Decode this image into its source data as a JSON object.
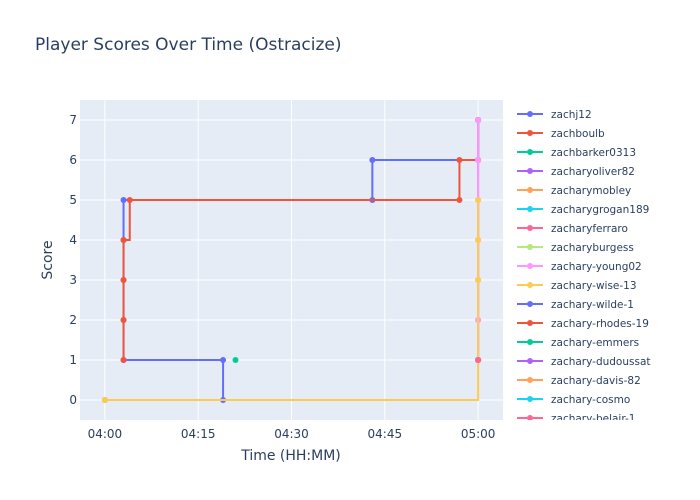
{
  "chart_data": {
    "type": "line",
    "line_shape": "step",
    "title": "Player Scores Over Time (Ostracize)",
    "xlabel": "Time (HH:MM)",
    "ylabel": "Score",
    "x_ticks": [
      "04:00",
      "04:15",
      "04:30",
      "04:45",
      "05:00"
    ],
    "y_ticks": [
      0,
      1,
      2,
      3,
      4,
      5,
      6,
      7
    ],
    "xlim": [
      "03:56",
      "05:04"
    ],
    "ylim": [
      -0.5,
      7.5
    ],
    "grid": true,
    "legend_position": "right",
    "background": "#e5ecf6",
    "series": [
      {
        "name": "zachj12",
        "color": "#636efa",
        "points": [
          [
            "04:00",
            0
          ],
          [
            "04:19",
            0
          ],
          [
            "04:19",
            1
          ],
          [
            "04:03",
            1
          ],
          [
            "04:03",
            2
          ],
          [
            "04:03",
            3
          ],
          [
            "04:03",
            4
          ],
          [
            "04:03",
            5
          ],
          [
            "04:43",
            5
          ],
          [
            "04:43",
            6
          ],
          [
            "05:00",
            6
          ],
          [
            "05:00",
            7
          ]
        ]
      },
      {
        "name": "zachboulb",
        "color": "#EF553B",
        "points": [
          [
            "04:03",
            1
          ],
          [
            "04:03",
            2
          ],
          [
            "04:03",
            3
          ],
          [
            "04:03",
            4
          ],
          [
            "04:04",
            5
          ],
          [
            "04:57",
            5
          ],
          [
            "04:57",
            6
          ],
          [
            "05:00",
            6
          ],
          [
            "05:00",
            7
          ]
        ]
      },
      {
        "name": "zachbarker0313",
        "color": "#00cc96",
        "points": [
          [
            "04:21",
            1
          ]
        ]
      },
      {
        "name": "zacharyoliver82",
        "color": "#ab63fa",
        "points": [
          [
            "05:00",
            1
          ],
          [
            "05:00",
            7
          ]
        ]
      },
      {
        "name": "zacharymobley",
        "color": "#FFA15A",
        "points": [
          [
            "04:00",
            0
          ]
        ]
      },
      {
        "name": "zacharygrogan189",
        "color": "#19d3f3",
        "points": [
          [
            "05:00",
            1
          ]
        ]
      },
      {
        "name": "zacharyferraro",
        "color": "#FF6692",
        "points": [
          [
            "05:00",
            1
          ]
        ]
      },
      {
        "name": "zacharyburgess",
        "color": "#B6E880",
        "points": [
          [
            "05:00",
            2
          ]
        ]
      },
      {
        "name": "zachary-young02",
        "color": "#FF97FF",
        "points": [
          [
            "05:00",
            1
          ],
          [
            "05:00",
            2
          ],
          [
            "05:00",
            3
          ],
          [
            "05:00",
            4
          ],
          [
            "05:00",
            5
          ],
          [
            "05:00",
            6
          ],
          [
            "05:00",
            7
          ]
        ]
      },
      {
        "name": "zachary-wise-13",
        "color": "#FECB52",
        "points": [
          [
            "04:00",
            0
          ],
          [
            "05:00",
            3
          ],
          [
            "05:00",
            4
          ],
          [
            "05:00",
            5
          ]
        ]
      },
      {
        "name": "zachary-wilde-1",
        "color": "#636efa",
        "points": [
          [
            "05:00",
            1
          ]
        ]
      },
      {
        "name": "zachary-rhodes-19",
        "color": "#EF553B",
        "points": [
          [
            "05:00",
            1
          ]
        ]
      },
      {
        "name": "zachary-emmers",
        "color": "#00cc96",
        "points": [
          [
            "05:00",
            1
          ]
        ]
      },
      {
        "name": "zachary-dudoussat",
        "color": "#ab63fa",
        "points": [
          [
            "05:00",
            1
          ]
        ]
      },
      {
        "name": "zachary-davis-82",
        "color": "#FFA15A",
        "points": [
          [
            "05:00",
            1
          ]
        ]
      },
      {
        "name": "zachary-cosmo",
        "color": "#19d3f3",
        "points": [
          [
            "05:00",
            1
          ]
        ]
      },
      {
        "name": "zachary-belair-1",
        "color": "#FF6692",
        "points": [
          [
            "05:00",
            1
          ]
        ]
      }
    ]
  }
}
